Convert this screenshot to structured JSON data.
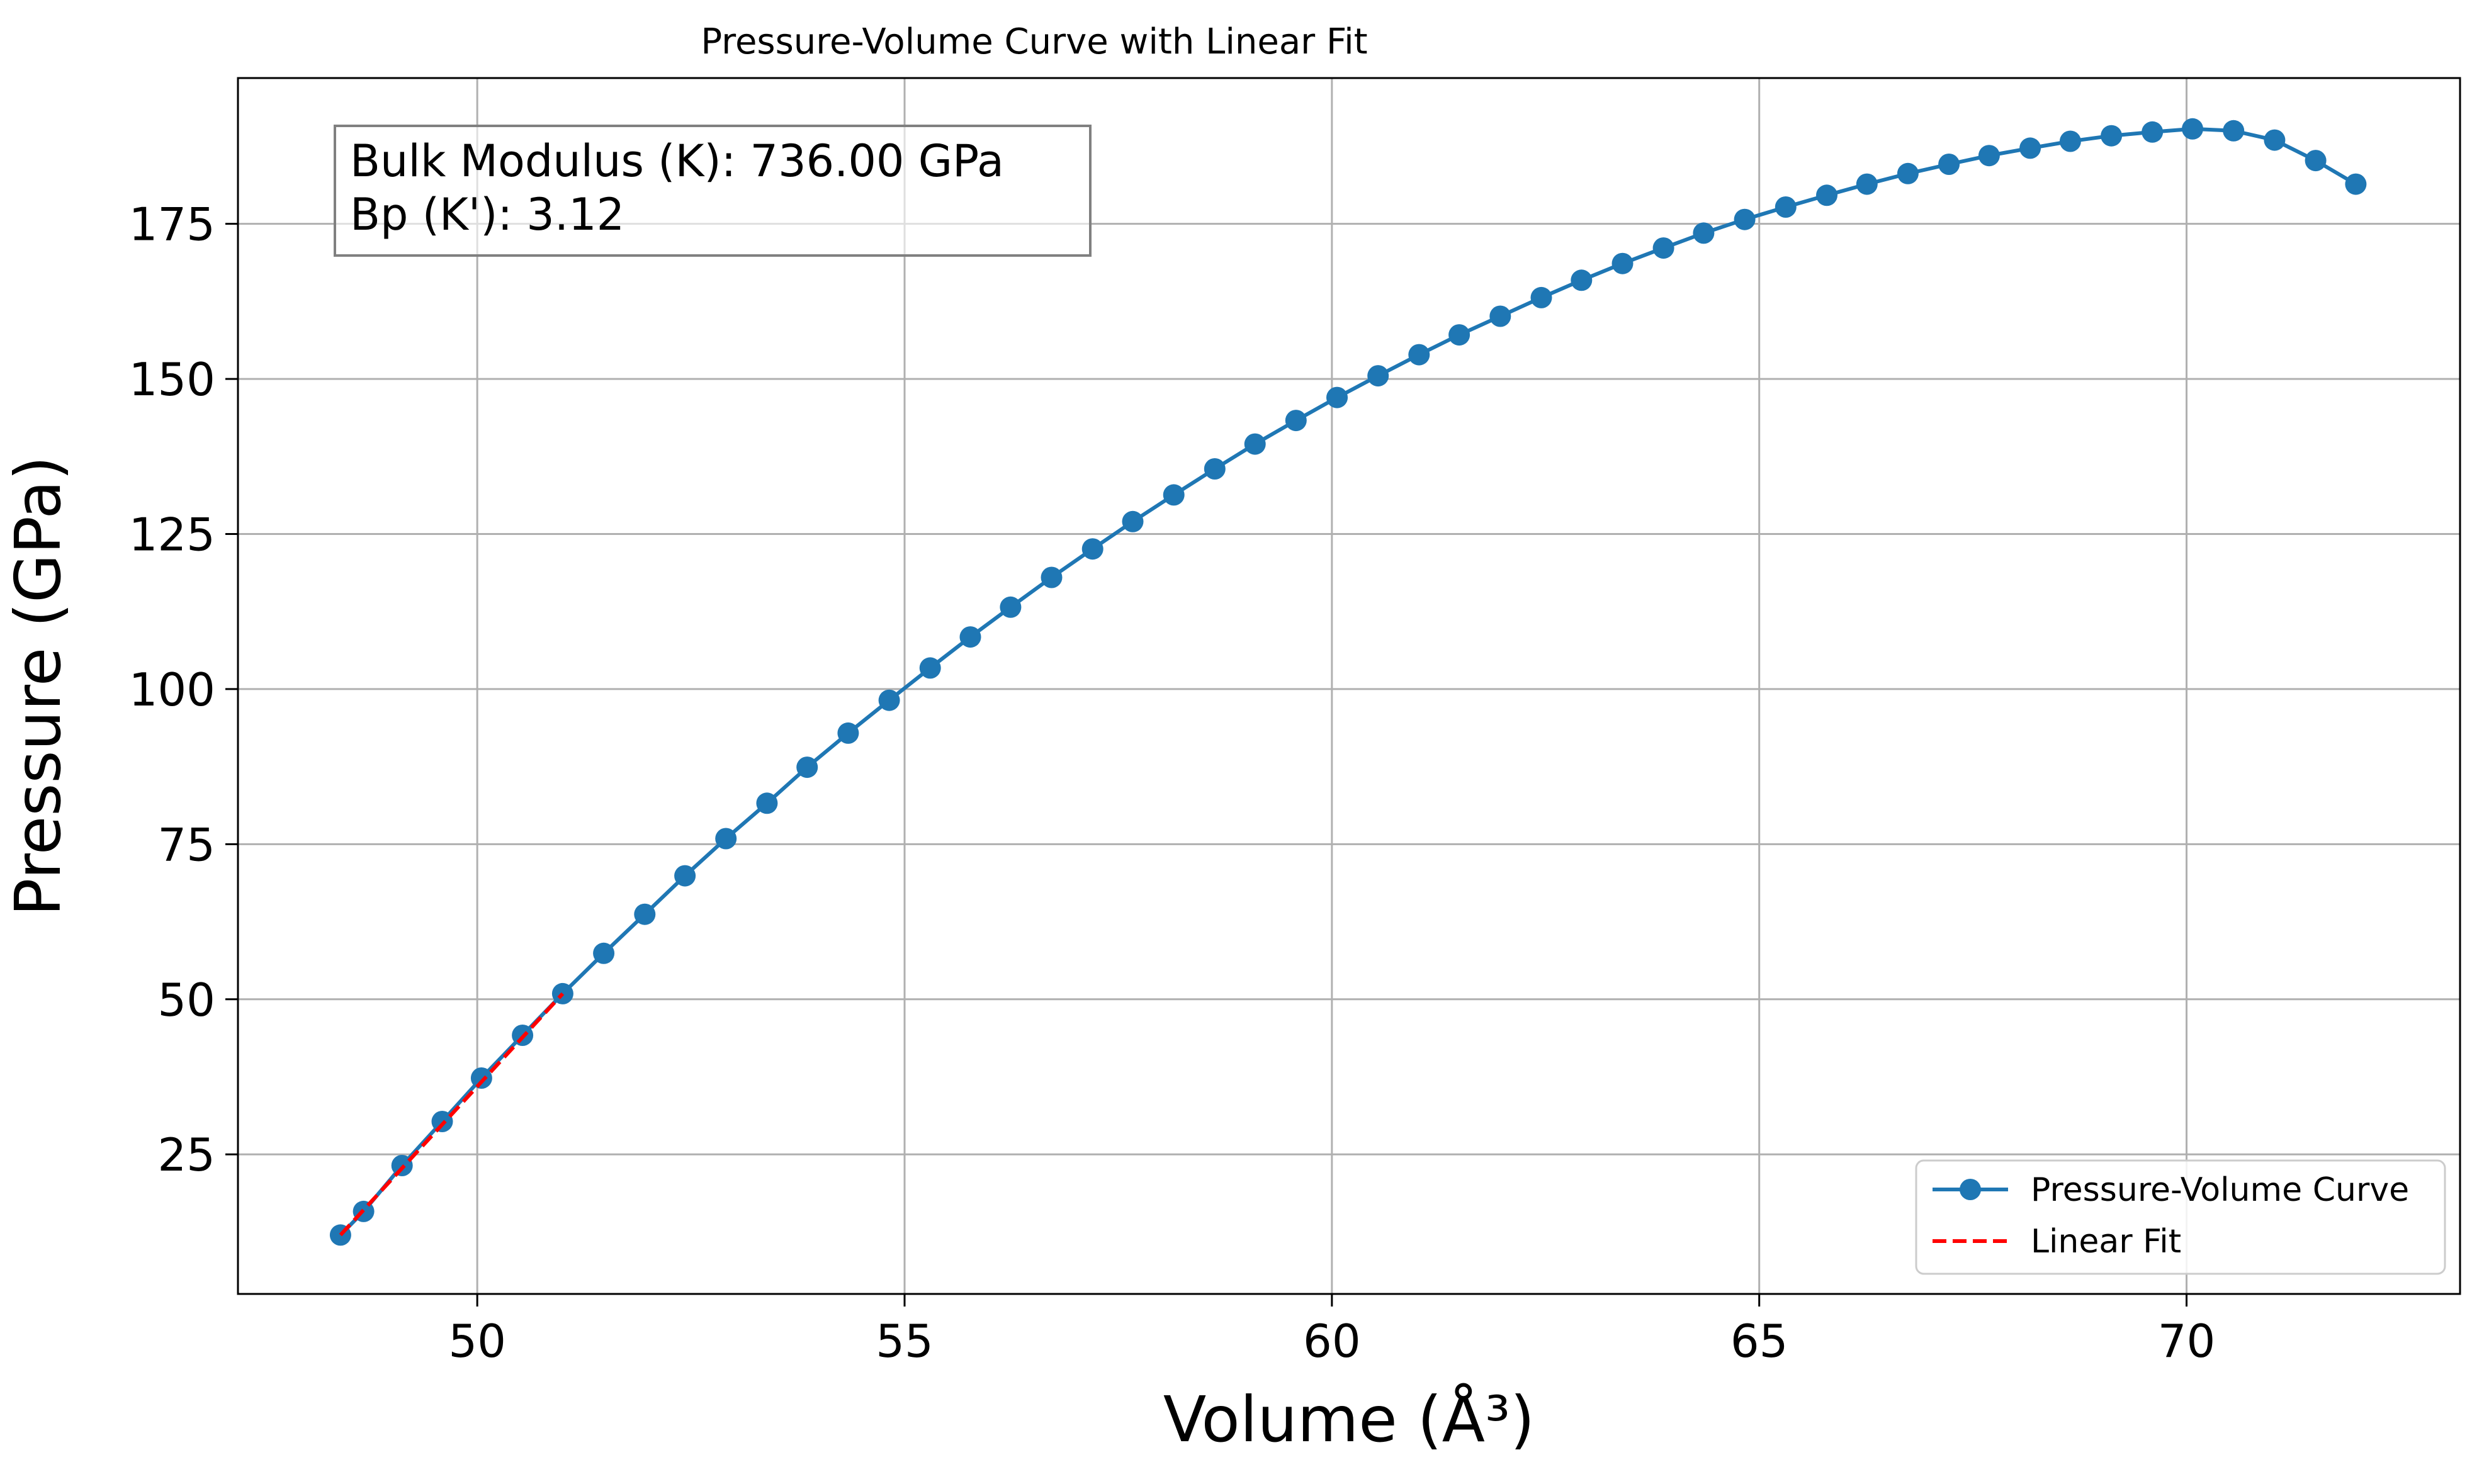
{
  "chart_data": {
    "type": "line",
    "title": "Pressure-Volume Curve with Linear Fit",
    "xlabel": "Volume (Å³)",
    "ylabel": "Pressure (GPa)",
    "xlim": [
      47.2,
      73.2
    ],
    "ylim": [
      2.5,
      198.5
    ],
    "xticks": [
      50,
      55,
      60,
      65,
      70
    ],
    "yticks": [
      25,
      50,
      75,
      100,
      125,
      150,
      175
    ],
    "xtick_labels": [
      "50",
      "55",
      "60",
      "65",
      "70"
    ],
    "ytick_labels": [
      "25",
      "50",
      "75",
      "100",
      "125",
      "150",
      "175"
    ],
    "grid": true,
    "legend_position": "lower-right",
    "annotation": {
      "line1": "Bulk Modulus (K): 736.00 GPa",
      "line2": "Bp (K'): 3.12"
    },
    "series": [
      {
        "name": "Pressure-Volume Curve",
        "style": "line-markers",
        "color": "#1f77b4",
        "x": [
          48.4,
          48.67,
          49.12,
          49.59,
          50.05,
          50.53,
          51.0,
          51.48,
          51.96,
          52.43,
          52.91,
          53.39,
          53.86,
          54.34,
          54.82,
          55.3,
          55.77,
          56.24,
          56.72,
          57.2,
          57.67,
          58.15,
          58.63,
          59.1,
          59.58,
          60.06,
          60.54,
          61.02,
          61.49,
          61.97,
          62.45,
          62.92,
          63.4,
          63.88,
          64.35,
          64.83,
          65.31,
          65.79,
          66.26,
          66.74,
          67.22,
          67.69,
          68.17,
          68.64,
          69.12,
          69.6,
          70.07,
          70.55,
          71.03,
          71.51,
          71.98
        ],
        "y": [
          12.0,
          15.8,
          23.2,
          30.3,
          37.3,
          44.2,
          50.9,
          57.4,
          63.7,
          69.9,
          75.9,
          81.6,
          87.4,
          92.9,
          98.2,
          103.4,
          108.4,
          113.2,
          118.0,
          122.6,
          127.0,
          131.3,
          135.5,
          139.5,
          143.3,
          147.0,
          150.5,
          153.9,
          157.1,
          160.1,
          163.1,
          165.9,
          168.6,
          171.1,
          173.5,
          175.7,
          177.7,
          179.6,
          181.4,
          183.1,
          184.6,
          186.0,
          187.2,
          188.3,
          189.2,
          189.8,
          190.3,
          190.0,
          188.5,
          185.2,
          181.4
        ]
      },
      {
        "name": "Linear Fit",
        "style": "dashed",
        "color": "#ff0000",
        "x": [
          48.4,
          51.0
        ],
        "y": [
          12.0,
          50.9
        ]
      }
    ]
  }
}
